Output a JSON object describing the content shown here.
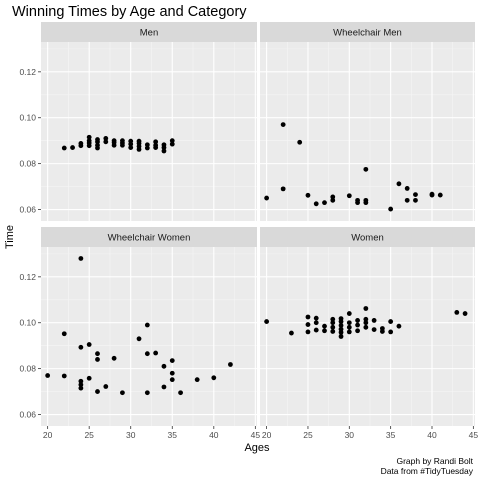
{
  "chart_data": {
    "type": "scatter",
    "title": "Winning Times by Age and Category",
    "xlabel": "Ages",
    "ylabel": "Time",
    "caption": [
      "Graph by Randi Bolt",
      "Data from #TidyTuesday"
    ],
    "xlim": [
      19.2,
      45.2
    ],
    "ylim": [
      0.055,
      0.133
    ],
    "x_ticks": [
      20,
      25,
      30,
      35,
      40,
      45
    ],
    "y_ticks": [
      0.06,
      0.08,
      0.1,
      0.12
    ],
    "y_tick_labels": [
      "0.06",
      "0.08",
      "0.10",
      "0.12"
    ],
    "point_color": "#000000",
    "background_color": "#ebebeb",
    "strip_color": "#d9d9d9",
    "panels": [
      {
        "name": "Men",
        "points": [
          [
            22,
            0.0868
          ],
          [
            23,
            0.087
          ],
          [
            24,
            0.0878
          ],
          [
            24,
            0.0888
          ],
          [
            25,
            0.0878
          ],
          [
            25,
            0.089
          ],
          [
            25,
            0.09
          ],
          [
            25,
            0.0915
          ],
          [
            26,
            0.0868
          ],
          [
            26,
            0.088
          ],
          [
            26,
            0.0895
          ],
          [
            26,
            0.0905
          ],
          [
            27,
            0.0895
          ],
          [
            27,
            0.091
          ],
          [
            28,
            0.088
          ],
          [
            28,
            0.0892
          ],
          [
            28,
            0.09
          ],
          [
            29,
            0.088
          ],
          [
            29,
            0.089
          ],
          [
            29,
            0.09
          ],
          [
            30,
            0.087
          ],
          [
            30,
            0.0885
          ],
          [
            30,
            0.0898
          ],
          [
            31,
            0.0862
          ],
          [
            31,
            0.0875
          ],
          [
            31,
            0.0888
          ],
          [
            31,
            0.0898
          ],
          [
            32,
            0.0868
          ],
          [
            32,
            0.0882
          ],
          [
            33,
            0.087
          ],
          [
            33,
            0.088
          ],
          [
            33,
            0.0895
          ],
          [
            34,
            0.0855
          ],
          [
            34,
            0.087
          ],
          [
            34,
            0.0882
          ],
          [
            35,
            0.0885
          ],
          [
            35,
            0.09
          ]
        ]
      },
      {
        "name": "Wheelchair Men",
        "points": [
          [
            20,
            0.065
          ],
          [
            22,
            0.097
          ],
          [
            22,
            0.069
          ],
          [
            24,
            0.0893
          ],
          [
            25,
            0.0662
          ],
          [
            26,
            0.0625
          ],
          [
            27,
            0.063
          ],
          [
            28,
            0.064
          ],
          [
            28,
            0.0655
          ],
          [
            30,
            0.066
          ],
          [
            31,
            0.063
          ],
          [
            31,
            0.064
          ],
          [
            32,
            0.0775
          ],
          [
            32,
            0.063
          ],
          [
            32,
            0.064
          ],
          [
            35,
            0.0602
          ],
          [
            36,
            0.0712
          ],
          [
            37,
            0.0692
          ],
          [
            37,
            0.064
          ],
          [
            38,
            0.0665
          ],
          [
            38,
            0.064
          ],
          [
            40,
            0.0663
          ],
          [
            40,
            0.0667
          ],
          [
            41,
            0.0663
          ]
        ]
      },
      {
        "name": "Wheelchair Women",
        "points": [
          [
            20,
            0.077
          ],
          [
            22,
            0.0952
          ],
          [
            22,
            0.0768
          ],
          [
            24,
            0.128
          ],
          [
            24,
            0.0893
          ],
          [
            24,
            0.0745
          ],
          [
            24,
            0.073
          ],
          [
            24,
            0.0715
          ],
          [
            25,
            0.0905
          ],
          [
            25,
            0.0758
          ],
          [
            26,
            0.0865
          ],
          [
            26,
            0.084
          ],
          [
            26,
            0.07
          ],
          [
            27,
            0.0722
          ],
          [
            28,
            0.0845
          ],
          [
            29,
            0.0695
          ],
          [
            31,
            0.093
          ],
          [
            32,
            0.099
          ],
          [
            32,
            0.0865
          ],
          [
            32,
            0.0695
          ],
          [
            33,
            0.0868
          ],
          [
            34,
            0.081
          ],
          [
            34,
            0.072
          ],
          [
            35,
            0.0835
          ],
          [
            35,
            0.078
          ],
          [
            35,
            0.0752
          ],
          [
            36,
            0.0695
          ],
          [
            38,
            0.0752
          ],
          [
            40,
            0.076
          ],
          [
            42,
            0.0818
          ]
        ]
      },
      {
        "name": "Women",
        "points": [
          [
            20,
            0.1005
          ],
          [
            23,
            0.0955
          ],
          [
            25,
            0.096
          ],
          [
            25,
            0.0992
          ],
          [
            25,
            0.1025
          ],
          [
            26,
            0.0968
          ],
          [
            26,
            0.1
          ],
          [
            26,
            0.102
          ],
          [
            27,
            0.0965
          ],
          [
            27,
            0.0985
          ],
          [
            28,
            0.0962
          ],
          [
            28,
            0.098
          ],
          [
            28,
            0.1
          ],
          [
            28,
            0.1015
          ],
          [
            29,
            0.094
          ],
          [
            29,
            0.0958
          ],
          [
            29,
            0.0972
          ],
          [
            29,
            0.0988
          ],
          [
            29,
            0.1005
          ],
          [
            29,
            0.1018
          ],
          [
            30,
            0.096
          ],
          [
            30,
            0.098
          ],
          [
            30,
            0.1
          ],
          [
            30,
            0.104
          ],
          [
            31,
            0.0965
          ],
          [
            31,
            0.099
          ],
          [
            31,
            0.101
          ],
          [
            32,
            0.098
          ],
          [
            32,
            0.1
          ],
          [
            32,
            0.1015
          ],
          [
            32,
            0.1062
          ],
          [
            33,
            0.097
          ],
          [
            33,
            0.101
          ],
          [
            34,
            0.0962
          ],
          [
            34,
            0.0975
          ],
          [
            35,
            0.096
          ],
          [
            35,
            0.1005
          ],
          [
            36,
            0.0985
          ],
          [
            43,
            0.1045
          ],
          [
            44,
            0.104
          ]
        ]
      }
    ]
  }
}
